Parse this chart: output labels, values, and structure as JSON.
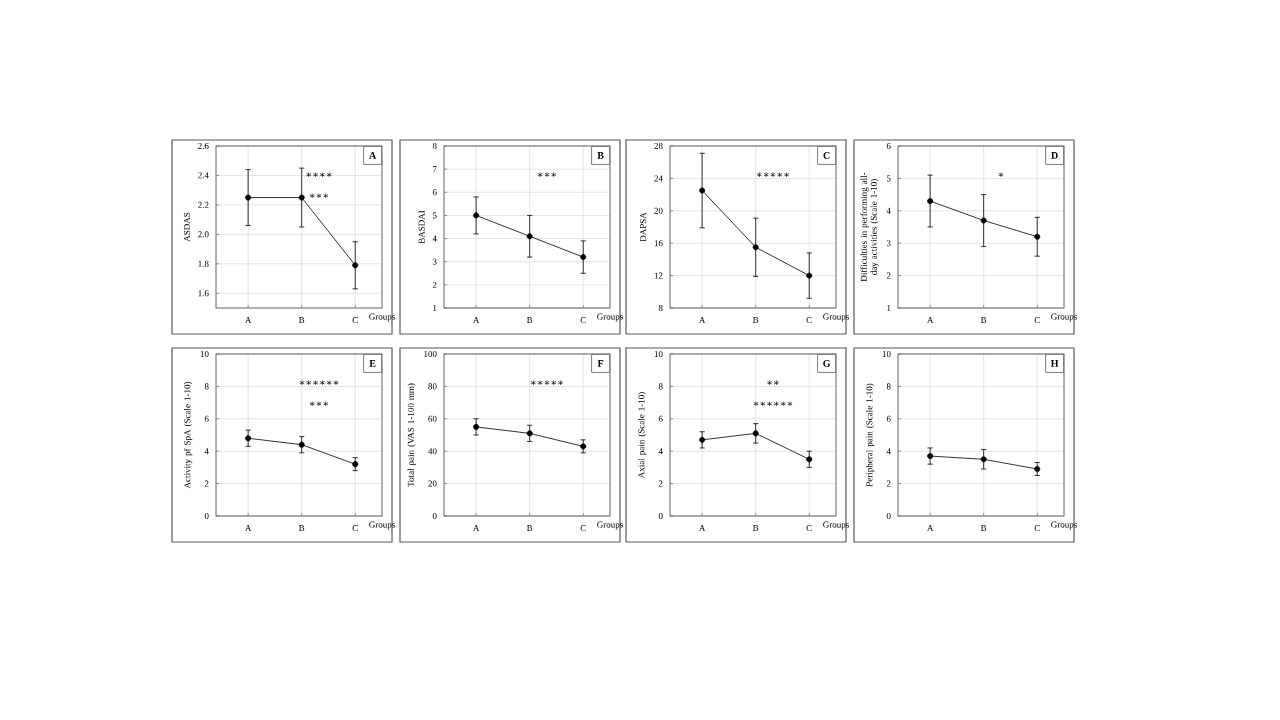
{
  "chart_data": [
    {
      "type": "line",
      "title": "A",
      "xlabel": "Groups",
      "ylabel": "ASDAS",
      "categories": [
        "A",
        "B",
        "C"
      ],
      "values": [
        2.25,
        2.25,
        1.79
      ],
      "errors": [
        0.19,
        0.2,
        0.16
      ],
      "color": "#000000",
      "marker": "circle",
      "ylim": [
        1.5,
        2.6
      ],
      "yticks": [
        1.6,
        1.8,
        {
          "value": 2,
          "label": "2.0"
        },
        2.2,
        2.4,
        2.6
      ],
      "grid": true,
      "annotations": [
        "∗∗∗∗",
        "∗∗∗"
      ]
    },
    {
      "type": "line",
      "title": "B",
      "xlabel": "Groups",
      "ylabel": "BASDAI",
      "categories": [
        "A",
        "B",
        "C"
      ],
      "values": [
        5.0,
        4.1,
        3.2
      ],
      "errors": [
        0.8,
        0.9,
        0.7
      ],
      "color": "#000000",
      "marker": "circle",
      "ylim": [
        1,
        8
      ],
      "yticks": [
        1,
        2,
        3,
        4,
        5,
        6,
        7,
        8
      ],
      "grid": true,
      "annotations": [
        "∗∗∗"
      ]
    },
    {
      "type": "line",
      "title": "C",
      "xlabel": "Groups",
      "ylabel": "DAPSA",
      "categories": [
        "A",
        "B",
        "C"
      ],
      "values": [
        22.5,
        15.5,
        12.0
      ],
      "errors": [
        4.6,
        3.6,
        2.8
      ],
      "color": "#000000",
      "marker": "circle",
      "ylim": [
        8,
        28
      ],
      "yticks": [
        8,
        12,
        16,
        20,
        24,
        28
      ],
      "grid": true,
      "annotations": [
        "∗∗∗∗∗"
      ]
    },
    {
      "type": "line",
      "title": "D",
      "xlabel": "Groups",
      "ylabel": "Difficulties in performing all-day activities (Scale 1-10)",
      "categories": [
        "A",
        "B",
        "C"
      ],
      "values": [
        4.3,
        3.7,
        3.2
      ],
      "errors": [
        0.8,
        0.8,
        0.6
      ],
      "color": "#000000",
      "marker": "circle",
      "ylim": [
        1,
        6
      ],
      "yticks": [
        1,
        2,
        3,
        4,
        5,
        6
      ],
      "grid": true,
      "annotations": [
        "∗"
      ]
    },
    {
      "type": "line",
      "title": "E",
      "xlabel": "Groups",
      "ylabel": "Activity pf SpA (Scale 1-10)",
      "categories": [
        "A",
        "B",
        "C"
      ],
      "values": [
        4.8,
        4.4,
        3.2
      ],
      "errors": [
        0.5,
        0.5,
        0.4
      ],
      "color": "#000000",
      "marker": "circle",
      "ylim": [
        0,
        10
      ],
      "yticks": [
        0,
        2,
        4,
        6,
        8,
        10
      ],
      "grid": true,
      "annotations": [
        "∗∗∗∗∗∗",
        "∗∗∗"
      ]
    },
    {
      "type": "line",
      "title": "F",
      "xlabel": "Groups",
      "ylabel": "Total pain (VAS 1-100 mm)",
      "categories": [
        "A",
        "B",
        "C"
      ],
      "values": [
        55,
        51,
        43
      ],
      "errors": [
        5,
        5,
        4
      ],
      "color": "#000000",
      "marker": "circle",
      "ylim": [
        0,
        100
      ],
      "yticks": [
        0,
        20,
        40,
        60,
        80,
        100
      ],
      "grid": true,
      "annotations": [
        "∗∗∗∗∗"
      ]
    },
    {
      "type": "line",
      "title": "G",
      "xlabel": "Groups",
      "ylabel": "Axial pain (Scale 1-10)",
      "categories": [
        "A",
        "B",
        "C"
      ],
      "values": [
        4.7,
        5.1,
        3.5
      ],
      "errors": [
        0.5,
        0.6,
        0.5
      ],
      "color": "#000000",
      "marker": "circle",
      "ylim": [
        0,
        10
      ],
      "yticks": [
        0,
        2,
        4,
        6,
        8,
        10
      ],
      "grid": true,
      "annotations": [
        "∗∗",
        "∗∗∗∗∗∗"
      ]
    },
    {
      "type": "line",
      "title": "H",
      "xlabel": "Groups",
      "ylabel": "Peripheral pain (Scale 1-10)",
      "categories": [
        "A",
        "B",
        "C"
      ],
      "values": [
        3.7,
        3.5,
        2.9
      ],
      "errors": [
        0.5,
        0.6,
        0.4
      ],
      "color": "#000000",
      "marker": "circle",
      "ylim": [
        0,
        10
      ],
      "yticks": [
        0,
        2,
        4,
        6,
        8,
        10
      ],
      "grid": true
    }
  ]
}
